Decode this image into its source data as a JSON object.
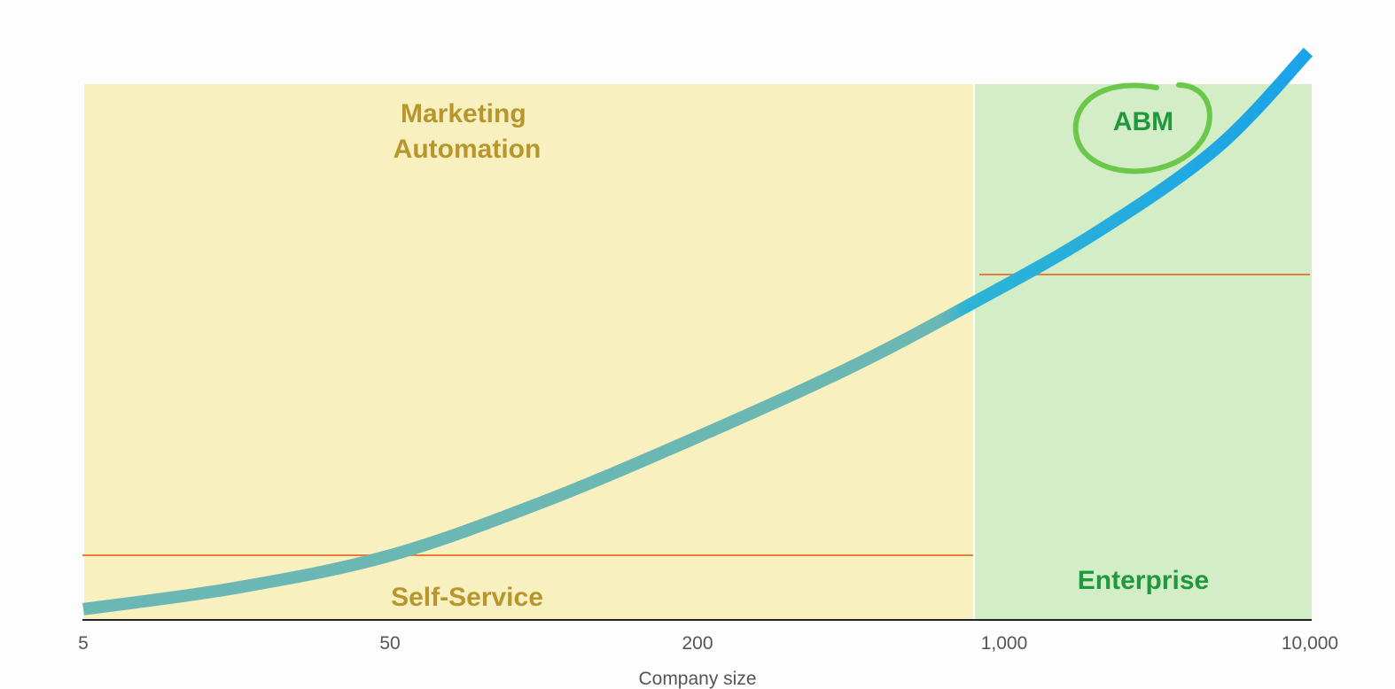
{
  "chart_data": {
    "type": "area",
    "xlabel": "Company size",
    "ylabel": "",
    "x_scale": "ordinal",
    "x_ticks": [
      "5",
      "50",
      "200",
      "1,000",
      "10,000"
    ],
    "regions": [
      {
        "name": "self-service",
        "label": "Self-Service",
        "color": "#b8962e",
        "fill": "#f8f0bf"
      },
      {
        "name": "marketing-automation",
        "label": "Marketing Automation",
        "color": "#b8962e",
        "fill": "#f8f0bf"
      },
      {
        "name": "enterprise",
        "label": "Enterprise",
        "color": "#1e9a3c",
        "fill": "#d3edc7"
      },
      {
        "name": "abm",
        "label": "ABM",
        "color": "#1e9a3c",
        "circle_color": "#6cc84a"
      }
    ],
    "threshold_color": "#e67e3a",
    "series": [
      {
        "color_start": "#6bb7b4",
        "color_end": "#1aa3e8",
        "x_index": [
          0,
          0.5,
          1,
          1.5,
          2,
          2.5,
          2.9,
          3.3,
          3.7,
          4.0
        ],
        "y": [
          0.02,
          0.06,
          0.12,
          0.22,
          0.34,
          0.47,
          0.59,
          0.72,
          0.88,
          1.06
        ]
      }
    ],
    "grid": false,
    "legend": "none"
  }
}
